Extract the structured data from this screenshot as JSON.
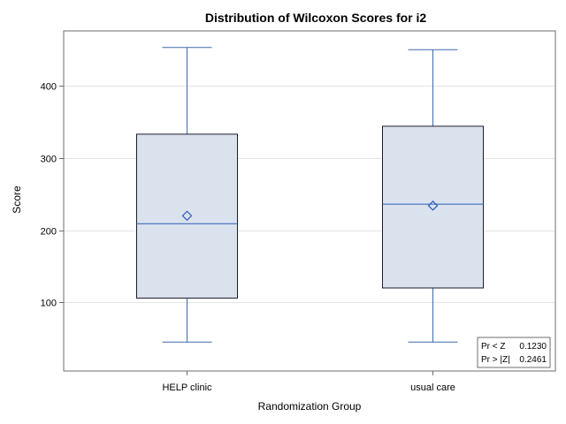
{
  "chart_data": {
    "type": "box",
    "title": "Distribution of Wilcoxon Scores for i2",
    "xlabel": "Randomization Group",
    "ylabel": "Score",
    "ylim": [
      5,
      476
    ],
    "yticks": [
      100,
      200,
      300,
      400
    ],
    "grid": true,
    "categories": [
      "HELP clinic",
      "usual care"
    ],
    "boxes": [
      {
        "category": "HELP clinic",
        "min": 45,
        "q1": 106,
        "median": 209,
        "q3": 333,
        "max": 453,
        "mean": 220
      },
      {
        "category": "usual care",
        "min": 45,
        "q1": 120,
        "median": 236,
        "q3": 344,
        "max": 450,
        "mean": 234
      }
    ],
    "inset": {
      "rows": [
        {
          "label": "Pr < Z",
          "value": "0.1230"
        },
        {
          "label": "Pr > |Z|",
          "value": "0.2461"
        }
      ]
    },
    "colors": {
      "box_fill": "#dae2ee",
      "box_edge": "#1c1c2c",
      "whisker": "#3d6aa8",
      "median": "#2d5cb5",
      "mean_marker": "#2d5cb5",
      "grid": "#e4e4e4",
      "frame": "#6e6e6e"
    }
  }
}
